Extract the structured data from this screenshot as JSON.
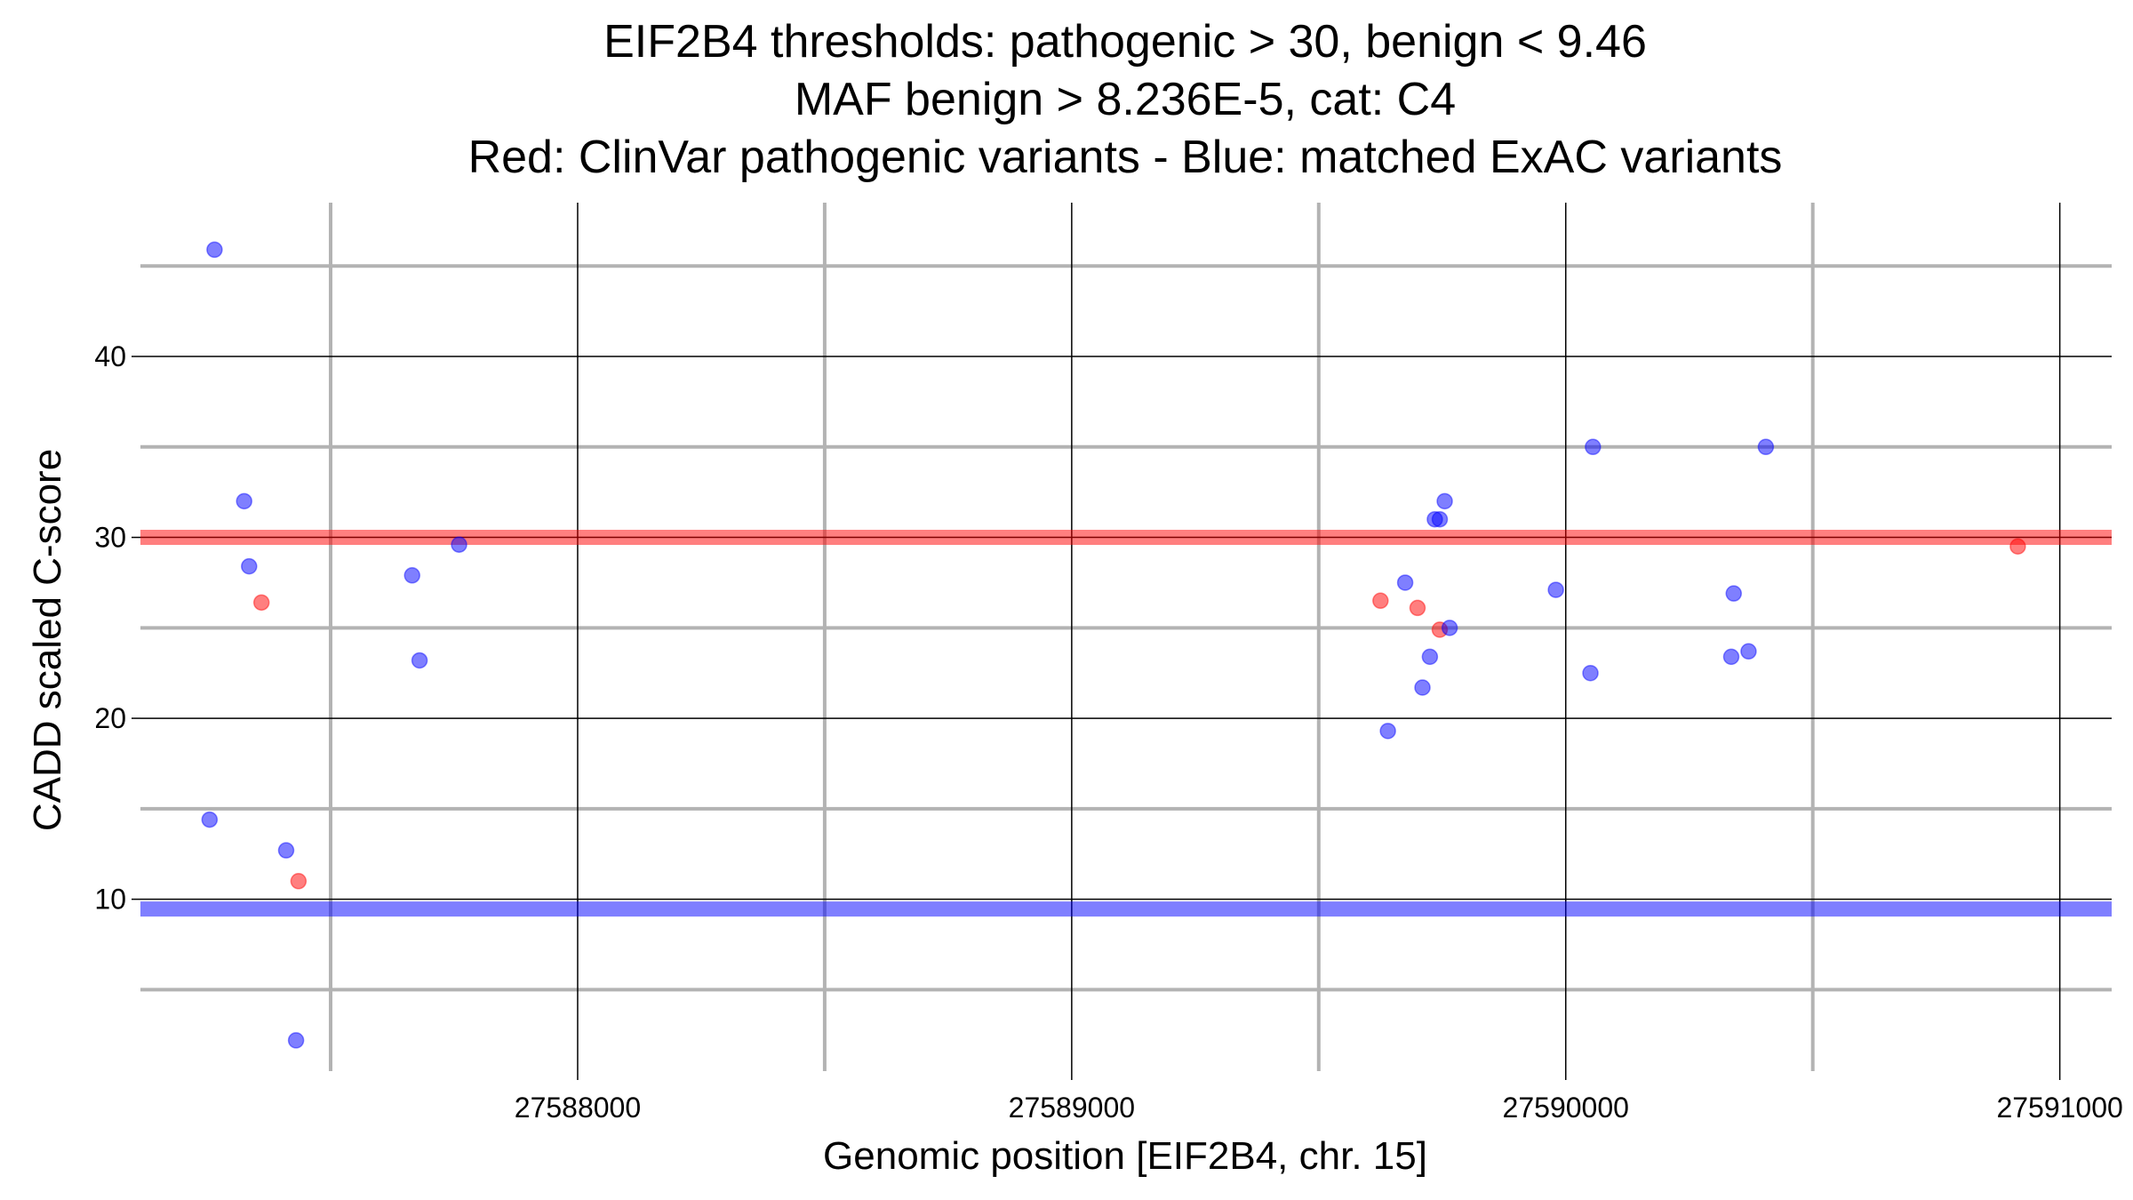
{
  "chart_data": {
    "type": "scatter",
    "title": [
      "EIF2B4 thresholds: pathogenic > 30, benign < 9.46",
      "MAF benign > 8.236E-5, cat: C4",
      "Red: ClinVar pathogenic variants - Blue: matched ExAC variants"
    ],
    "xlabel": "Genomic position [EIF2B4, chr. 15]",
    "ylabel": "CADD scaled C-score",
    "xlim": [
      27587115,
      27591105
    ],
    "ylim": [
      0.5,
      48.5
    ],
    "x_ticks": [
      27588000,
      27589000,
      27590000,
      27591000
    ],
    "x_tick_labels": [
      "27588000",
      "27589000",
      "27590000",
      "27591000"
    ],
    "x_minor_ticks": [
      27587500,
      27588500,
      27589500,
      27590500
    ],
    "y_ticks": [
      10,
      20,
      30,
      40
    ],
    "y_tick_labels": [
      "10",
      "20",
      "30",
      "40"
    ],
    "y_minor_ticks": [
      5,
      15,
      25,
      35,
      45
    ],
    "thresholds": [
      {
        "name": "pathogenic",
        "value": 30,
        "color": "#ff0000"
      },
      {
        "name": "benign",
        "value": 9.46,
        "color": "#0000ff"
      }
    ],
    "series": [
      {
        "name": "ClinVar pathogenic variants",
        "color": "#ff0000",
        "points": [
          {
            "x": 27587360,
            "y": 26.4
          },
          {
            "x": 27587435,
            "y": 11.0
          },
          {
            "x": 27589625,
            "y": 26.5
          },
          {
            "x": 27589700,
            "y": 26.1
          },
          {
            "x": 27589745,
            "y": 24.9
          },
          {
            "x": 27590915,
            "y": 29.5
          }
        ]
      },
      {
        "name": "matched ExAC variants",
        "color": "#0000ff",
        "points": [
          {
            "x": 27587265,
            "y": 45.9
          },
          {
            "x": 27587255,
            "y": 14.4
          },
          {
            "x": 27587325,
            "y": 32.0
          },
          {
            "x": 27587335,
            "y": 28.4
          },
          {
            "x": 27587410,
            "y": 12.7
          },
          {
            "x": 27587430,
            "y": 2.2
          },
          {
            "x": 27587665,
            "y": 27.9
          },
          {
            "x": 27587680,
            "y": 23.2
          },
          {
            "x": 27587760,
            "y": 29.6
          },
          {
            "x": 27589640,
            "y": 19.3
          },
          {
            "x": 27589675,
            "y": 27.5
          },
          {
            "x": 27589710,
            "y": 21.7
          },
          {
            "x": 27589725,
            "y": 23.4
          },
          {
            "x": 27589735,
            "y": 31.0
          },
          {
            "x": 27589745,
            "y": 31.0
          },
          {
            "x": 27589755,
            "y": 32.0
          },
          {
            "x": 27589765,
            "y": 25.0
          },
          {
            "x": 27589980,
            "y": 27.1
          },
          {
            "x": 27590050,
            "y": 22.5
          },
          {
            "x": 27590055,
            "y": 35.0
          },
          {
            "x": 27590335,
            "y": 23.4
          },
          {
            "x": 27590340,
            "y": 26.9
          },
          {
            "x": 27590370,
            "y": 23.7
          },
          {
            "x": 27590405,
            "y": 35.0
          }
        ]
      }
    ]
  }
}
